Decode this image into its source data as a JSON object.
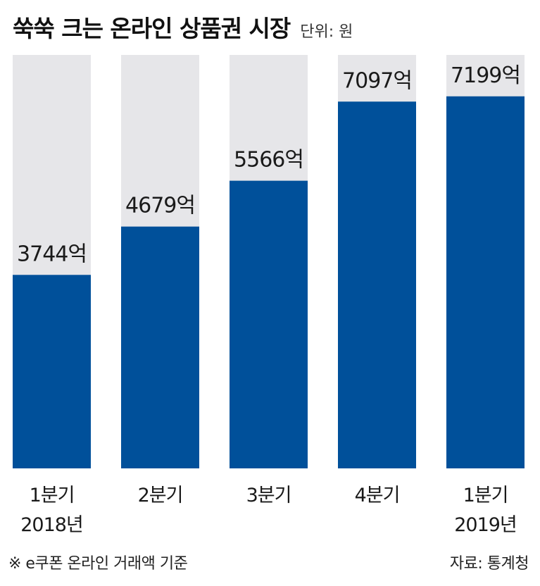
{
  "chart_data": {
    "type": "bar",
    "title": "쑥쑥 크는 온라인 상품권 시장",
    "unit_label": "단위: 원",
    "categories": [
      [
        "1분기",
        "2018년"
      ],
      [
        "2분기"
      ],
      [
        "3분기"
      ],
      [
        "4분기"
      ],
      [
        "1분기",
        "2019년"
      ]
    ],
    "values": [
      3744,
      4679,
      5566,
      7097,
      7199
    ],
    "value_labels": [
      "3744억",
      "4679억",
      "5566억",
      "7097억",
      "7199억"
    ],
    "ylim": [
      0,
      8000
    ],
    "grid": false,
    "colors": {
      "bar": "#00509a",
      "background_bar": "#e6e6e9"
    }
  },
  "footer": {
    "note": "※ e쿠폰 온라인 거래액 기준",
    "source": "자료: 통계청"
  }
}
